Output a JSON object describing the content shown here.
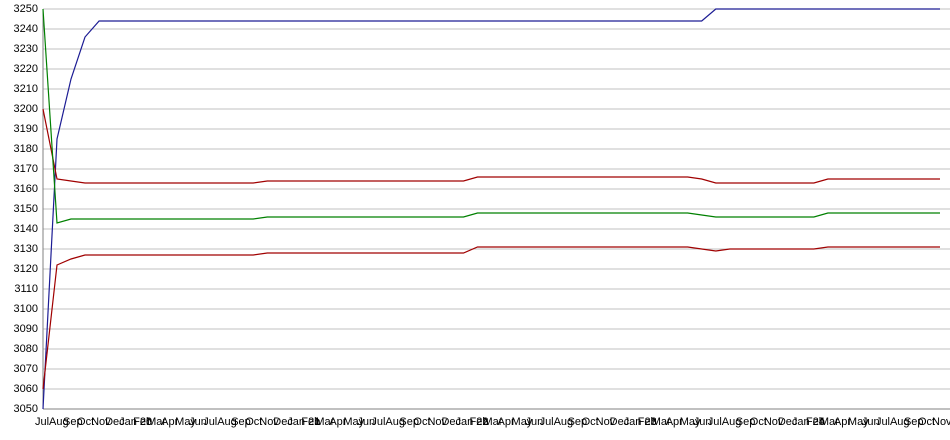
{
  "chart_data": {
    "type": "line",
    "categories": [
      "Jul",
      "Aug",
      "Sep",
      "Oct",
      "Nov",
      "Dec",
      "Jan 20",
      "Feb",
      "Mar",
      "Apr",
      "May",
      "Jun",
      "Jul",
      "Aug",
      "Sep",
      "Oct",
      "Nov",
      "Dec",
      "Jan 21",
      "Feb",
      "Mar",
      "Apr",
      "May",
      "Jun",
      "Jul",
      "Aug",
      "Sep",
      "Oct",
      "Nov",
      "Dec",
      "Jan 22",
      "Feb",
      "Mar",
      "Apr",
      "May",
      "Jun",
      "Jul",
      "Aug",
      "Sep",
      "Oct",
      "Nov",
      "Dec",
      "Jan 23",
      "Feb",
      "Mar",
      "Apr",
      "May",
      "Jun",
      "Jul",
      "Aug",
      "Sep",
      "Oct",
      "Nov",
      "Dec",
      "Jan 24",
      "Feb",
      "Mar",
      "Apr",
      "May",
      "Jun",
      "Jul",
      "Aug",
      "Sep",
      "Oct",
      "Nov"
    ],
    "series": [
      {
        "color": "#1c1c94",
        "values": [
          3050,
          3185,
          3215,
          3236,
          3244,
          3244,
          3244,
          3244,
          3244,
          3244,
          3244,
          3244,
          3244,
          3244,
          3244,
          3244,
          3244,
          3244,
          3244,
          3244,
          3244,
          3244,
          3244,
          3244,
          3244,
          3244,
          3244,
          3244,
          3244,
          3244,
          3244,
          3244,
          3244,
          3244,
          3244,
          3244,
          3244,
          3244,
          3244,
          3244,
          3244,
          3244,
          3244,
          3244,
          3244,
          3244,
          3244,
          3244,
          3250,
          3250,
          3250,
          3250,
          3250,
          3250,
          3250,
          3250,
          3250,
          3250,
          3250,
          3250,
          3250,
          3250,
          3250,
          3250,
          3250
        ]
      },
      {
        "color": "#a00000",
        "values": [
          3200,
          3165,
          3164,
          3163,
          3163,
          3163,
          3163,
          3163,
          3163,
          3163,
          3163,
          3163,
          3163,
          3163,
          3163,
          3163,
          3164,
          3164,
          3164,
          3164,
          3164,
          3164,
          3164,
          3164,
          3164,
          3164,
          3164,
          3164,
          3164,
          3164,
          3164,
          3166,
          3166,
          3166,
          3166,
          3166,
          3166,
          3166,
          3166,
          3166,
          3166,
          3166,
          3166,
          3166,
          3166,
          3166,
          3166,
          3165,
          3163,
          3163,
          3163,
          3163,
          3163,
          3163,
          3163,
          3163,
          3165,
          3165,
          3165,
          3165,
          3165,
          3165,
          3165,
          3165,
          3165
        ]
      },
      {
        "color": "#008000",
        "values": [
          3250,
          3143,
          3145,
          3145,
          3145,
          3145,
          3145,
          3145,
          3145,
          3145,
          3145,
          3145,
          3145,
          3145,
          3145,
          3145,
          3146,
          3146,
          3146,
          3146,
          3146,
          3146,
          3146,
          3146,
          3146,
          3146,
          3146,
          3146,
          3146,
          3146,
          3146,
          3148,
          3148,
          3148,
          3148,
          3148,
          3148,
          3148,
          3148,
          3148,
          3148,
          3148,
          3148,
          3148,
          3148,
          3148,
          3148,
          3147,
          3146,
          3146,
          3146,
          3146,
          3146,
          3146,
          3146,
          3146,
          3148,
          3148,
          3148,
          3148,
          3148,
          3148,
          3148,
          3148,
          3148
        ]
      },
      {
        "color": "#a00000",
        "values": [
          3060,
          3122,
          3125,
          3127,
          3127,
          3127,
          3127,
          3127,
          3127,
          3127,
          3127,
          3127,
          3127,
          3127,
          3127,
          3127,
          3128,
          3128,
          3128,
          3128,
          3128,
          3128,
          3128,
          3128,
          3128,
          3128,
          3128,
          3128,
          3128,
          3128,
          3128,
          3131,
          3131,
          3131,
          3131,
          3131,
          3131,
          3131,
          3131,
          3131,
          3131,
          3131,
          3131,
          3131,
          3131,
          3131,
          3131,
          3130,
          3129,
          3130,
          3130,
          3130,
          3130,
          3130,
          3130,
          3130,
          3131,
          3131,
          3131,
          3131,
          3131,
          3131,
          3131,
          3131,
          3131
        ]
      }
    ],
    "ylim": [
      3050,
      3250
    ],
    "yticks": [
      3050,
      3060,
      3070,
      3080,
      3090,
      3100,
      3110,
      3120,
      3130,
      3140,
      3150,
      3160,
      3170,
      3180,
      3190,
      3200,
      3210,
      3220,
      3230,
      3240,
      3250
    ],
    "grid": true
  }
}
